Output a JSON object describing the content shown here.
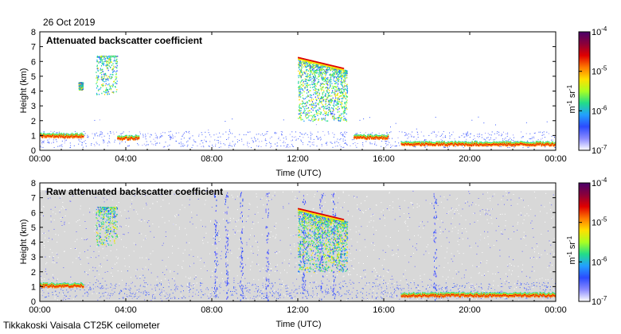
{
  "header": {
    "date": "26 Oct 2019"
  },
  "footer": {
    "instrument": "Tikkakoski Vaisala CT25K ceilometer"
  },
  "colorbar": {
    "ticks": [
      {
        "base": "10",
        "exp": "-4"
      },
      {
        "base": "10",
        "exp": "-5"
      },
      {
        "base": "10",
        "exp": "-6"
      },
      {
        "base": "10",
        "exp": "-7"
      }
    ],
    "unit": {
      "a": "m",
      "aexp": "-1",
      "b": " sr",
      "bexp": "-1"
    },
    "scale": "log",
    "range": [
      1e-07,
      0.0001
    ],
    "colors": [
      "#ffffff",
      "#8a8aff",
      "#2b4bff",
      "#22a0ff",
      "#22dd88",
      "#aaff22",
      "#ffe000",
      "#ff7a00",
      "#e00000",
      "#8a003a",
      "#4a006a"
    ]
  },
  "chart_data": [
    {
      "type": "heatmap",
      "title": "Attenuated backscatter coefficient",
      "xlabel": "Time (UTC)",
      "ylabel": "Height (km)",
      "xticks": [
        "00:00",
        "04:00",
        "08:00",
        "12:00",
        "16:00",
        "20:00",
        "00:00"
      ],
      "yticks": [
        "0",
        "1",
        "2",
        "3",
        "4",
        "5",
        "6",
        "7",
        "8"
      ],
      "xlim_hours": [
        0,
        24
      ],
      "ylim_km": [
        0,
        8
      ],
      "features": [
        {
          "kind": "boundary_layer",
          "t": [
            0,
            5
          ],
          "h": [
            0.2,
            1.3
          ]
        },
        {
          "kind": "cloud_layer",
          "t": [
            0,
            2
          ],
          "h": 1.0
        },
        {
          "kind": "cloud_layer",
          "t": [
            3.6,
            4.6
          ],
          "h": 0.85
        },
        {
          "kind": "mid_cloud",
          "t": [
            1.8,
            2.0
          ],
          "h": [
            4.1,
            4.6
          ]
        },
        {
          "kind": "mid_cloud",
          "t": [
            2.6,
            3.6
          ],
          "h": [
            3.8,
            6.4
          ]
        },
        {
          "kind": "high_cloud",
          "t": [
            12.0,
            14.3
          ],
          "h": [
            2.0,
            6.3
          ]
        },
        {
          "kind": "cloud_layer",
          "t": [
            14.6,
            16.2
          ],
          "h": 0.9
        },
        {
          "kind": "cloud_layer",
          "t": [
            16.8,
            24
          ],
          "h": 0.45
        }
      ]
    },
    {
      "type": "heatmap",
      "title": "Raw attenuated backscatter coefficient",
      "xlabel": "Time (UTC)",
      "ylabel": "Height (km)",
      "xticks": [
        "00:00",
        "04:00",
        "08:00",
        "12:00",
        "16:00",
        "20:00",
        "00:00"
      ],
      "yticks": [
        "0",
        "1",
        "2",
        "3",
        "4",
        "5",
        "6",
        "7",
        "8"
      ],
      "xlim_hours": [
        0,
        24
      ],
      "ylim_km": [
        0,
        8
      ],
      "features": [
        {
          "kind": "noise_background",
          "t": [
            0,
            24
          ],
          "h": [
            0,
            7.5
          ]
        },
        {
          "kind": "boundary_layer",
          "t": [
            0,
            5
          ],
          "h": [
            0.2,
            1.3
          ]
        },
        {
          "kind": "cloud_layer",
          "t": [
            0,
            2
          ],
          "h": 1.1
        },
        {
          "kind": "mid_cloud",
          "t": [
            2.6,
            3.6
          ],
          "h": [
            3.8,
            6.4
          ]
        },
        {
          "kind": "high_cloud",
          "t": [
            12.0,
            14.3
          ],
          "h": [
            2.0,
            6.3
          ]
        },
        {
          "kind": "cloud_layer",
          "t": [
            16.8,
            24
          ],
          "h": 0.45
        }
      ]
    }
  ]
}
